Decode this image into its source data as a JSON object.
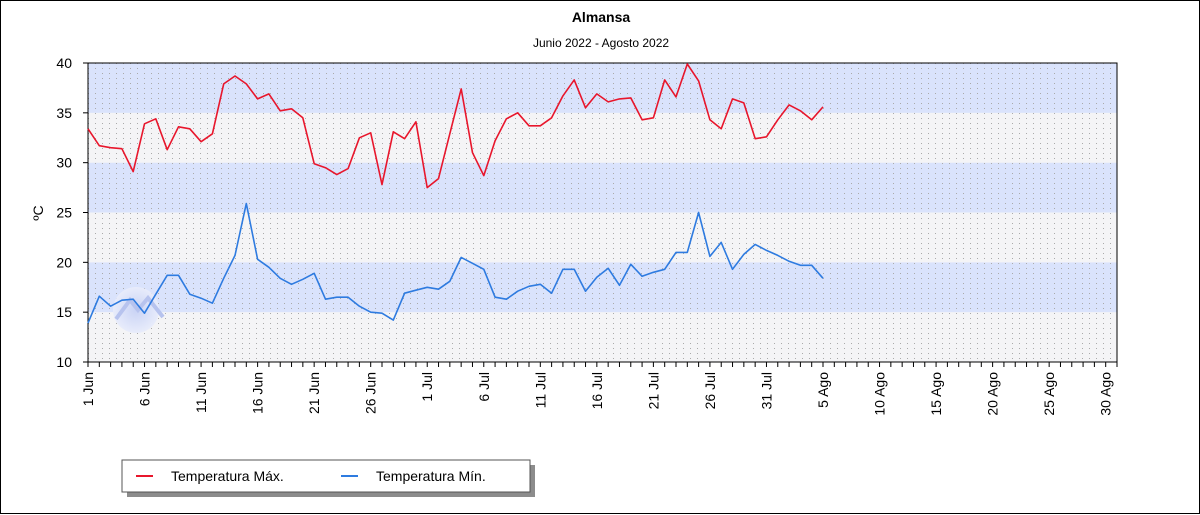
{
  "chart_data": {
    "type": "line",
    "title": "Almansa",
    "subtitle": "Junio 2022 - Agosto 2022",
    "ylabel": "ºC",
    "xlabel": "",
    "ylim": [
      10,
      40
    ],
    "yticks": [
      "10",
      "15",
      "20",
      "25",
      "30",
      "35",
      "40"
    ],
    "x_range_days": [
      0,
      91
    ],
    "x_tick_labels": [
      "1 Jun",
      "6 Jun",
      "11 Jun",
      "16 Jun",
      "21 Jun",
      "26 Jun",
      "1 Jul",
      "6 Jul",
      "11 Jul",
      "16 Jul",
      "21 Jul",
      "26 Jul",
      "31 Jul",
      "5 Ago",
      "10 Ago",
      "15 Ago",
      "20 Ago",
      "25 Ago",
      "30 Ago"
    ],
    "grid": true,
    "legend_placement": "bottom-left",
    "series": [
      {
        "name": "Temperatura Máx.",
        "color": "#e8162c",
        "values": [
          33.4,
          31.7,
          31.5,
          31.4,
          29.1,
          33.9,
          34.4,
          31.3,
          33.6,
          33.4,
          32.1,
          32.9,
          37.9,
          38.7,
          37.9,
          36.4,
          36.9,
          35.2,
          35.4,
          34.5,
          29.9,
          29.5,
          28.8,
          29.4,
          32.5,
          33.0,
          27.8,
          33.1,
          32.4,
          34.1,
          27.5,
          28.4,
          32.9,
          37.4,
          31.0,
          28.7,
          32.2,
          34.4,
          35.0,
          33.7,
          33.7,
          34.5,
          36.7,
          38.3,
          35.5,
          36.9,
          36.1,
          36.4,
          36.5,
          34.3,
          34.5,
          38.3,
          36.6,
          39.9,
          38.2,
          34.3,
          33.4,
          36.4,
          36.0,
          32.4,
          32.6,
          34.3,
          35.8,
          35.2,
          34.3,
          35.6
        ]
      },
      {
        "name": "Temperatura Mín.",
        "color": "#2e7be0",
        "values": [
          13.9,
          16.6,
          15.6,
          16.2,
          16.3,
          14.9,
          16.8,
          18.7,
          18.7,
          16.8,
          16.4,
          15.9,
          18.4,
          20.7,
          25.9,
          20.3,
          19.5,
          18.4,
          17.8,
          18.3,
          18.9,
          16.3,
          16.5,
          16.5,
          15.6,
          15.0,
          14.9,
          14.2,
          16.9,
          17.2,
          17.5,
          17.3,
          18.1,
          20.5,
          19.9,
          19.3,
          16.5,
          16.3,
          17.1,
          17.6,
          17.8,
          16.9,
          19.3,
          19.3,
          17.1,
          18.5,
          19.4,
          17.7,
          19.8,
          18.6,
          19.0,
          19.3,
          21.0,
          21.0,
          25.0,
          20.6,
          22.0,
          19.3,
          20.8,
          21.8,
          21.2,
          20.7,
          20.1,
          19.7,
          19.7,
          18.4
        ]
      }
    ]
  },
  "logo": {
    "lettering": "AM"
  }
}
